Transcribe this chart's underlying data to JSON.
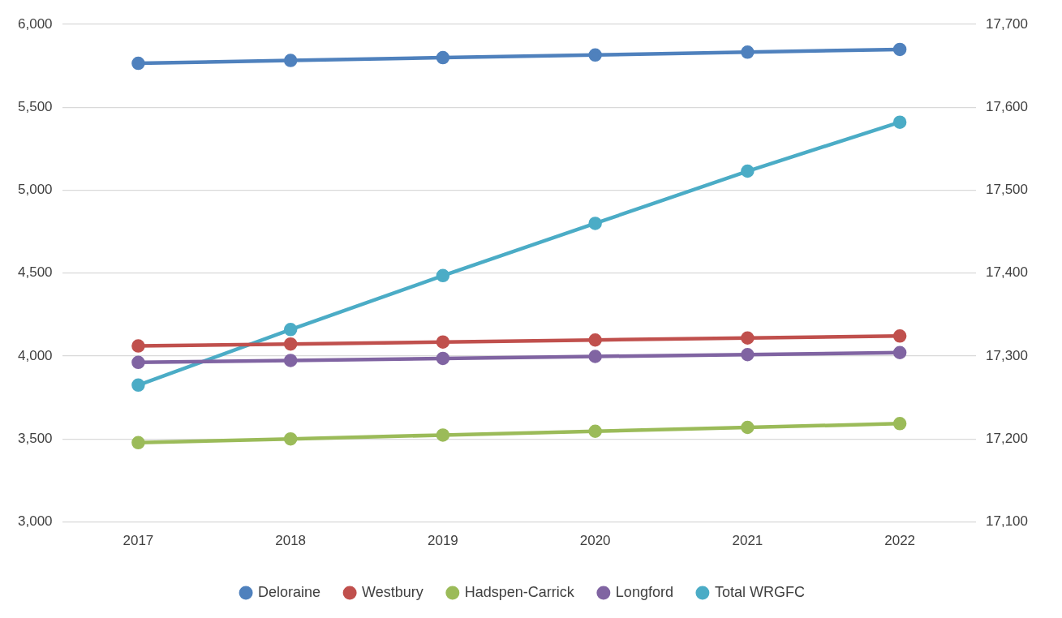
{
  "chart_data": {
    "type": "line",
    "categories": [
      "2017",
      "2018",
      "2019",
      "2020",
      "2021",
      "2022"
    ],
    "series": [
      {
        "name": "Deloraine",
        "color": "#4f81bd",
        "values": [
          5765,
          5782,
          5799,
          5815,
          5832,
          5849
        ]
      },
      {
        "name": "Westbury",
        "color": "#c0504d",
        "values": [
          4061,
          4073,
          4085,
          4097,
          4109,
          4121
        ]
      },
      {
        "name": "Hadspen-Carrick",
        "color": "#9bbb59",
        "values": [
          3478,
          3501,
          3524,
          3547,
          3570,
          3593
        ]
      },
      {
        "name": "Longford",
        "color": "#8064a2",
        "values": [
          3962,
          3974,
          3986,
          3998,
          4009,
          4021
        ]
      },
      {
        "name": "Total WRGFC",
        "color": "#4bacc6",
        "axis": "y2",
        "values": [
          17265,
          17332,
          17397,
          17460,
          17523,
          17582
        ]
      }
    ],
    "ylim": [
      3000,
      6000
    ],
    "yticks": [
      {
        "value": 3000,
        "label": "3,000"
      },
      {
        "value": 3500,
        "label": "3,500"
      },
      {
        "value": 4000,
        "label": "4,000"
      },
      {
        "value": 4500,
        "label": "4,500"
      },
      {
        "value": 5000,
        "label": "5,000"
      },
      {
        "value": 5500,
        "label": "5,500"
      },
      {
        "value": 6000,
        "label": "6,000"
      }
    ],
    "y2lim": [
      17100,
      17700
    ],
    "y2ticks": [
      {
        "value": 17100,
        "label": "17,100"
      },
      {
        "value": 17200,
        "label": "17,200"
      },
      {
        "value": 17300,
        "label": "17,300"
      },
      {
        "value": 17400,
        "label": "17,400"
      },
      {
        "value": 17500,
        "label": "17,500"
      },
      {
        "value": 17600,
        "label": "17,600"
      },
      {
        "value": 17700,
        "label": "17,700"
      }
    ],
    "grid": "y",
    "legend": "bottom",
    "marker": "circle",
    "line_style": "solid"
  }
}
